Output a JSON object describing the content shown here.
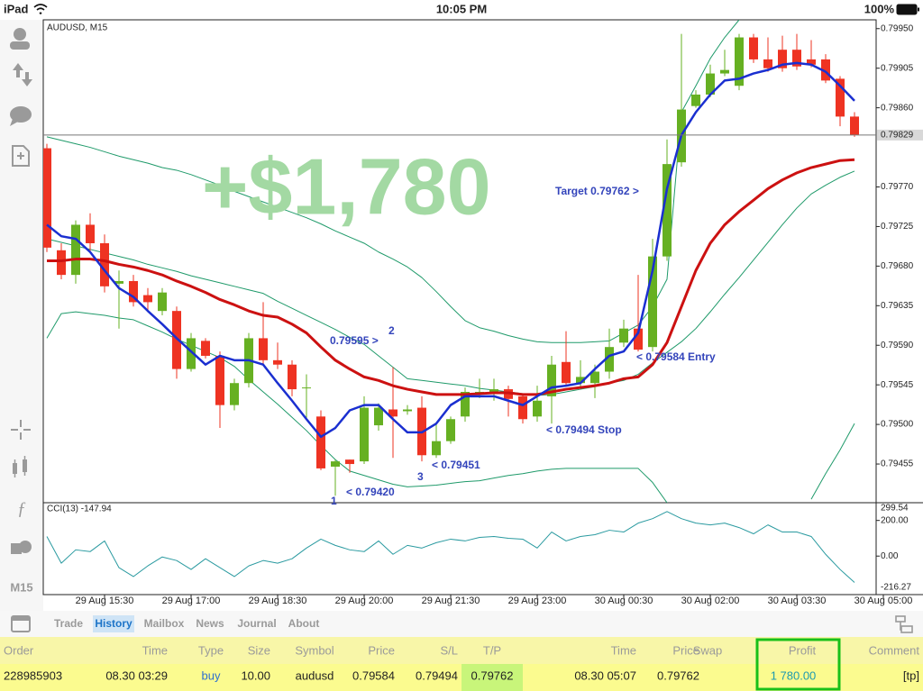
{
  "status_bar": {
    "device": "iPad",
    "time": "10:05 PM",
    "battery": "100%"
  },
  "toolbar": {
    "timeframe": "M15"
  },
  "chart_data": [
    {
      "type": "candlestick",
      "title": "AUDUSD, M15",
      "up_color": "#66b022",
      "down_color": "#ee3322",
      "open": [
        0.79814,
        0.79698,
        0.7967,
        0.79727,
        0.79706,
        0.7966,
        0.79663,
        0.79647,
        0.79629,
        0.79629,
        0.79563,
        0.79595,
        0.79578,
        0.79522,
        0.79547,
        0.79598,
        0.79573,
        0.79568,
        0.79542,
        0.79509,
        0.79452,
        0.7946,
        0.79458,
        0.79499,
        0.79517,
        0.79515,
        0.79519,
        0.79465,
        0.79481,
        0.79509,
        0.79534,
        0.79536,
        0.7954,
        0.79532,
        0.79509,
        0.79532,
        0.79571,
        0.79547,
        0.79547,
        0.7956,
        0.79593,
        0.79609,
        0.79588,
        0.79691,
        0.79798,
        0.79862,
        0.79875,
        0.79899,
        0.79885,
        0.7994,
        0.79915,
        0.79926,
        0.79926,
        0.79915,
        0.79915,
        0.79893,
        0.7985
      ],
      "high": [
        0.79819,
        0.79706,
        0.79732,
        0.7974,
        0.79716,
        0.79675,
        0.7967,
        0.79655,
        0.79655,
        0.79634,
        0.79604,
        0.79598,
        0.79583,
        0.79552,
        0.79604,
        0.79639,
        0.79593,
        0.79573,
        0.79557,
        0.79516,
        0.7946,
        0.7946,
        0.79532,
        0.79524,
        0.79565,
        0.79522,
        0.79532,
        0.79501,
        0.79509,
        0.79542,
        0.79552,
        0.79552,
        0.79544,
        0.79534,
        0.79544,
        0.79578,
        0.79606,
        0.79573,
        0.79568,
        0.79609,
        0.79619,
        0.7967,
        0.79711,
        0.79824,
        0.79944,
        0.7988,
        0.79909,
        0.79926,
        0.79944,
        0.79944,
        0.7994,
        0.79942,
        0.79944,
        0.79937,
        0.79921,
        0.79896,
        0.79855
      ],
      "low": [
        0.79696,
        0.79665,
        0.7966,
        0.79696,
        0.7965,
        0.79609,
        0.79634,
        0.79629,
        0.79624,
        0.79552,
        0.7956,
        0.79575,
        0.79496,
        0.79516,
        0.79542,
        0.79568,
        0.79563,
        0.79532,
        0.79506,
        0.79448,
        0.79419,
        0.79445,
        0.79455,
        0.79493,
        0.79462,
        0.79511,
        0.79458,
        0.79462,
        0.79478,
        0.79503,
        0.7953,
        0.79527,
        0.79509,
        0.79501,
        0.79503,
        0.79501,
        0.79544,
        0.79542,
        0.7953,
        0.79552,
        0.79588,
        0.79583,
        0.79583,
        0.79686,
        0.79793,
        0.7986,
        0.79872,
        0.79896,
        0.7988,
        0.79911,
        0.79901,
        0.79901,
        0.79903,
        0.79906,
        0.79888,
        0.79839,
        0.79827
      ],
      "close": [
        0.79701,
        0.7967,
        0.79727,
        0.79706,
        0.79657,
        0.79663,
        0.79639,
        0.79639,
        0.7965,
        0.79563,
        0.79598,
        0.79578,
        0.79522,
        0.79547,
        0.79598,
        0.79573,
        0.79568,
        0.7954,
        0.79542,
        0.7945,
        0.79458,
        0.79455,
        0.79519,
        0.79519,
        0.79509,
        0.79517,
        0.79465,
        0.79481,
        0.79506,
        0.79537,
        0.79537,
        0.7954,
        0.79529,
        0.79506,
        0.79527,
        0.79568,
        0.79547,
        0.79554,
        0.7956,
        0.79588,
        0.79609,
        0.79585,
        0.79691,
        0.79796,
        0.79858,
        0.79875,
        0.79899,
        0.79903,
        0.7994,
        0.79915,
        0.79905,
        0.79905,
        0.79907,
        0.79909,
        0.79891,
        0.7985,
        0.79829
      ],
      "lines": [
        {
          "color": "#1f9a6a",
          "line_width": 1,
          "values": [
            0.79827,
            0.79823,
            0.79819,
            0.79815,
            0.7981,
            0.79805,
            0.79801,
            0.79797,
            0.79792,
            0.79789,
            0.79784,
            0.79778,
            0.79772,
            0.79765,
            0.79759,
            0.79753,
            0.79747,
            0.79741,
            0.79735,
            0.79728,
            0.7972,
            0.79713,
            0.79706,
            0.79696,
            0.79688,
            0.79679,
            0.79667,
            0.79651,
            0.79634,
            0.79618,
            0.7961,
            0.79606,
            0.79601,
            0.79597,
            0.79594,
            0.79593,
            0.79593,
            0.79593,
            0.79594,
            0.79595,
            0.79604,
            0.79613,
            0.79634,
            0.79665,
            0.79855,
            0.79885,
            0.79916,
            0.7994,
            0.7996,
            null,
            null,
            null,
            null,
            null,
            null,
            null,
            null
          ]
        },
        {
          "color": "#1f9a6a",
          "line_width": 1,
          "values": [
            0.79711,
            0.79707,
            0.79703,
            0.79699,
            0.79695,
            0.79691,
            0.79687,
            0.79682,
            0.79678,
            0.79674,
            0.79669,
            0.79665,
            0.79661,
            0.79657,
            0.79653,
            0.79649,
            0.7964,
            0.79632,
            0.79624,
            0.79616,
            0.79608,
            0.79599,
            0.79591,
            0.79578,
            0.79565,
            0.79552,
            0.7955,
            0.79548,
            0.79546,
            0.79544,
            0.79541,
            0.79539,
            0.79537,
            0.79535,
            0.79533,
            0.79534,
            0.79537,
            0.7954,
            0.79543,
            0.79547,
            0.7955,
            0.79557,
            0.7957,
            0.79582,
            0.79594,
            0.79609,
            0.79628,
            0.79648,
            0.79667,
            0.79687,
            0.79707,
            0.79727,
            0.79746,
            0.79762,
            0.79772,
            0.79781,
            0.79788
          ]
        },
        {
          "color": "#1f9a6a",
          "line_width": 1,
          "values": [
            0.79598,
            0.79626,
            0.79628,
            0.79626,
            0.79624,
            0.79621,
            0.79619,
            0.79612,
            0.79605,
            0.79597,
            0.7959,
            0.79583,
            0.79576,
            0.79566,
            0.79551,
            0.79537,
            0.79523,
            0.79508,
            0.79493,
            0.79476,
            0.7946,
            0.79447,
            0.79442,
            0.79437,
            0.79432,
            0.79429,
            0.7943,
            0.79431,
            0.79433,
            0.79435,
            0.79436,
            0.79439,
            0.79442,
            0.79444,
            0.79447,
            0.79449,
            0.7945,
            0.7945,
            0.7945,
            0.7945,
            0.7945,
            0.7945,
            0.79434,
            0.79411,
            null,
            null,
            null,
            null,
            null,
            null,
            null,
            null,
            null,
            0.79415,
            0.79444,
            0.79471,
            0.79501
          ]
        },
        {
          "color": "#cc1111",
          "line_width": 3,
          "values": [
            0.79686,
            0.79686,
            0.79688,
            0.79688,
            0.79686,
            0.79682,
            0.79679,
            0.79675,
            0.7967,
            0.79663,
            0.79657,
            0.7965,
            0.79642,
            0.79636,
            0.79629,
            0.79624,
            0.79622,
            0.79614,
            0.79604,
            0.79588,
            0.79573,
            0.79563,
            0.79554,
            0.7955,
            0.79544,
            0.7954,
            0.79537,
            0.79534,
            0.79534,
            0.79534,
            0.79535,
            0.79536,
            0.79536,
            0.79534,
            0.79534,
            0.79537,
            0.7954,
            0.79542,
            0.79544,
            0.79547,
            0.79552,
            0.79554,
            0.79568,
            0.79593,
            0.79634,
            0.79675,
            0.79706,
            0.79727,
            0.79742,
            0.79755,
            0.79768,
            0.79778,
            0.79786,
            0.79792,
            0.79796,
            0.798,
            0.79801
          ]
        },
        {
          "color": "#1a2fd0",
          "line_width": 2.5,
          "values": [
            0.79727,
            0.79714,
            0.79711,
            0.79696,
            0.79675,
            0.79655,
            0.79645,
            0.79629,
            0.79614,
            0.79598,
            0.79583,
            0.79568,
            0.79578,
            0.79573,
            0.79573,
            0.79568,
            0.79547,
            0.79527,
            0.79506,
            0.79486,
            0.79496,
            0.79516,
            0.79522,
            0.79522,
            0.79506,
            0.79491,
            0.79491,
            0.79501,
            0.79522,
            0.79532,
            0.79532,
            0.79532,
            0.79527,
            0.79522,
            0.79532,
            0.79542,
            0.79544,
            0.79547,
            0.79563,
            0.79578,
            0.79583,
            0.79604,
            0.79675,
            0.79768,
            0.79829,
            0.79855,
            0.79875,
            0.79891,
            0.79893,
            0.79899,
            0.79903,
            0.79909,
            0.79911,
            0.79909,
            0.79901,
            0.79885,
            0.79868
          ]
        }
      ],
      "ylim": [
        0.79411,
        0.7996
      ],
      "yticks": [
        {
          "value": 0.7995,
          "label": "0.79950"
        },
        0.79905,
        {
          "value": 0.7986,
          "label": "0.79860"
        },
        {
          "value": 0.7977,
          "label": "0.79770"
        },
        0.79725,
        {
          "value": 0.7968,
          "label": "0.79680"
        },
        0.79635,
        {
          "value": 0.7959,
          "label": "0.79590"
        },
        0.79545,
        {
          "value": 0.795,
          "label": "0.79500"
        },
        0.79455
      ],
      "grid": false,
      "current_price": 0.79829,
      "x_labels": [
        "29 Aug 15:30",
        "29 Aug 17:00",
        "29 Aug 18:30",
        "29 Aug 20:00",
        "29 Aug 21:30",
        "29 Aug 23:00",
        "30 Aug 00:30",
        "30 Aug 02:00",
        "30 Aug 03:30",
        "30 Aug 05:00"
      ],
      "profit_overlay": "+$1,780",
      "annotations": [
        "Target 0.79762 >",
        "0.79595 >",
        "2",
        "< 0.79584 Entry",
        "< 0.79494 Stop",
        "< 0.79451",
        "3",
        "< 0.79420",
        "1"
      ]
    },
    {
      "type": "line",
      "title": "CCI(13) -147.94",
      "color": "#2a9aa0",
      "values": [
        110,
        -40,
        35,
        25,
        85,
        -65,
        -115,
        -55,
        -5,
        -25,
        -75,
        -15,
        -65,
        -115,
        -55,
        -25,
        -40,
        -15,
        45,
        95,
        60,
        35,
        25,
        85,
        10,
        60,
        45,
        75,
        95,
        85,
        105,
        110,
        100,
        95,
        45,
        135,
        85,
        110,
        120,
        145,
        135,
        185,
        210,
        250,
        210,
        185,
        175,
        185,
        160,
        125,
        175,
        135,
        135,
        110,
        10,
        -75,
        -147.94
      ],
      "ylim": [
        -216.27,
        299.54
      ],
      "yticks": [
        299.54,
        {
          "value": 200,
          "label": "200.00"
        },
        {
          "value": 0,
          "label": "0.00"
        },
        -216.27
      ]
    }
  ],
  "tabs": [
    "Trade",
    "History",
    "Mailbox",
    "News",
    "Journal",
    "About"
  ],
  "table": {
    "headers": [
      "Order",
      "Time",
      "Type",
      "Size",
      "Symbol",
      "Price",
      "S/L",
      "T/P",
      "Time",
      "Price",
      "Swap",
      "Profit",
      "Comment"
    ],
    "rows": [
      [
        "228985903",
        "08.30 03:29",
        "buy",
        "10.00",
        "audusd",
        "0.79584",
        "0.79494",
        "0.79762",
        "08.30 05:07",
        "0.79762",
        null,
        "1 780.00",
        "[tp]"
      ]
    ]
  }
}
